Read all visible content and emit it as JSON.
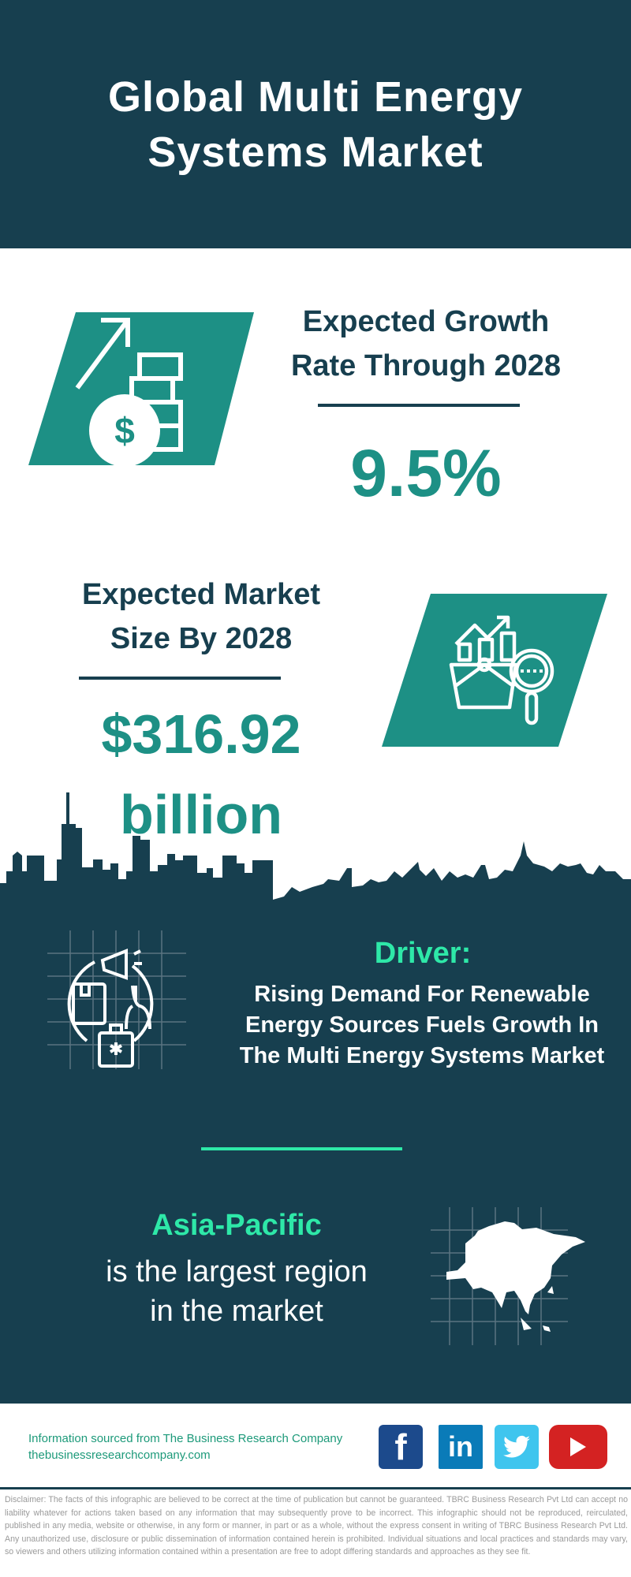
{
  "header": {
    "title_line1": "Global Multi Energy",
    "title_line2": "Systems Market"
  },
  "growth": {
    "label_line1": "Expected Growth",
    "label_line2": "Rate Through 2028",
    "value": "9.5%",
    "icon": "money-growth-icon"
  },
  "market_size": {
    "label_line1": "Expected Market",
    "label_line2": "Size By 2028",
    "value_line1": "$316.92",
    "value_line2": "billion",
    "icon": "market-analysis-icon"
  },
  "driver": {
    "label": "Driver:",
    "text_line1": "Rising Demand For Renewable",
    "text_line2": "Energy Sources Fuels Growth In",
    "text_line3": "The Multi Energy Systems Market",
    "icon": "marketing-icon"
  },
  "region": {
    "name": "Asia-Pacific",
    "text_line1": "is the largest region",
    "text_line2": "in the market",
    "icon": "asia-map-icon"
  },
  "footer": {
    "source": "Information sourced from The Business Research Company",
    "website": "thebusinessresearchcompany.com",
    "social": [
      "facebook",
      "linkedin",
      "twitter",
      "youtube"
    ]
  },
  "disclaimer": "Disclaimer: The facts of this infographic are believed to be correct at the time of publication but cannot be guaranteed. TBRC Business Research Pvt Ltd can accept no liability whatever for actions taken based on any information that may subsequently prove to be incorrect. This infographic should not be reproduced, reirculated, published in any media, website or otherwise, in any form or manner, in part or as a whole, without the express consent in writing of TBRC Business Research Pvt Ltd. Any unauthorized use, disclosure or public dissemination of information contained herein is prohibited. Individual situations and local practices and standards may vary, so viewers and others utilizing information contained within a presentation are free to adopt differing standards and approaches as they see fit.",
  "colors": {
    "dark": "#173f4f",
    "teal": "#1d9085",
    "accent": "#2ee8a8"
  }
}
